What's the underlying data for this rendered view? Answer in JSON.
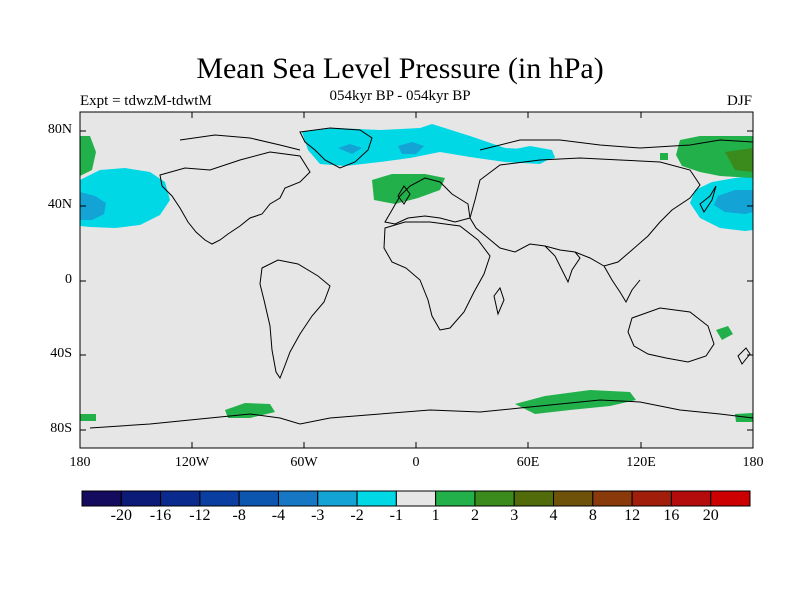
{
  "title": "Mean Sea Level Pressure (in hPa)",
  "subtitle": "054kyr BP - 054kyr BP",
  "left_label": "Expt = tdwzM-tdwtM",
  "right_label": "DJF",
  "lat_ticks": [
    "80N",
    "40N",
    "0",
    "40S",
    "80S"
  ],
  "lon_ticks": [
    "180",
    "120W",
    "60W",
    "0",
    "60E",
    "120E",
    "180"
  ],
  "colorbar": {
    "labels": [
      "-20",
      "-16",
      "-12",
      "-8",
      "-4",
      "-3",
      "-2",
      "-1",
      "1",
      "2",
      "3",
      "4",
      "8",
      "12",
      "16",
      "20"
    ],
    "colors": [
      "#140a5e",
      "#0c1a78",
      "#0a2a8e",
      "#0a3ea0",
      "#0d56b0",
      "#1677c4",
      "#13a3d4",
      "#00d8e6",
      "#e6e6e6",
      "#22b04a",
      "#3a8a1c",
      "#516a0a",
      "#6e520a",
      "#8a3a0a",
      "#a01e0a",
      "#b40c0c",
      "#cc0000"
    ]
  },
  "map": {
    "background": "#e6e6e6",
    "coastline_color": "#000000",
    "anomaly_regions": [
      {
        "region": "North Pacific low",
        "sign": "negative",
        "level": "-2 to -3"
      },
      {
        "region": "West Pacific east of Japan",
        "sign": "negative",
        "level": "-2 to -3"
      },
      {
        "region": "Greenland / North Atlantic",
        "sign": "negative",
        "level": "-1 to -2"
      },
      {
        "region": "Northern Europe",
        "sign": "positive",
        "level": "1 to 2"
      },
      {
        "region": "Eastern Siberia / Arctic",
        "sign": "positive",
        "level": "2 to 3"
      },
      {
        "region": "Antarctic coast",
        "sign": "positive",
        "level": "1 to 2"
      }
    ]
  }
}
